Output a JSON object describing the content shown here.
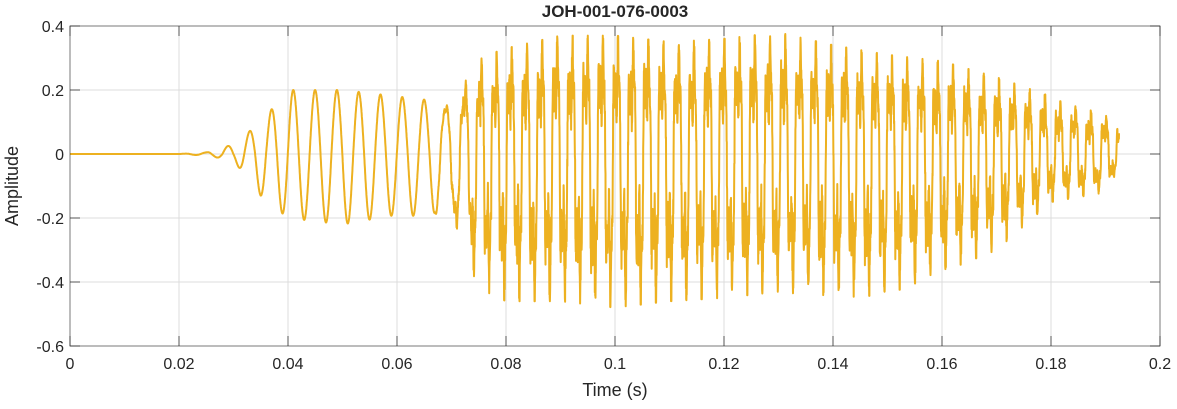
{
  "chart_data": {
    "type": "line",
    "title": "JOH-001-076-0003",
    "xlabel": "Time (s)",
    "ylabel": "Amplitude",
    "xlim": [
      0,
      0.2
    ],
    "ylim": [
      -0.6,
      0.4
    ],
    "xticks": [
      0,
      0.02,
      0.04,
      0.06,
      0.08,
      0.1,
      0.12,
      0.14,
      0.16,
      0.18,
      0.2
    ],
    "xtick_labels": [
      "0",
      "0.02",
      "0.04",
      "0.06",
      "0.08",
      "0.1",
      "0.12",
      "0.14",
      "0.16",
      "0.18",
      "0.2"
    ],
    "yticks": [
      -0.6,
      -0.4,
      -0.2,
      0,
      0.2,
      0.4
    ],
    "ytick_labels": [
      "-0.6",
      "-0.4",
      "-0.2",
      "0",
      "0.2",
      "0.4"
    ],
    "grid": true,
    "line_color": "#EDB120",
    "signal_end_s": 0.1925,
    "envelope": {
      "t": [
        0,
        0.02,
        0.025,
        0.03,
        0.035,
        0.04,
        0.05,
        0.06,
        0.07,
        0.075,
        0.08,
        0.09,
        0.1,
        0.11,
        0.12,
        0.13,
        0.14,
        0.15,
        0.16,
        0.17,
        0.18,
        0.19,
        0.1925
      ],
      "upper": [
        0,
        0,
        0.005,
        0.03,
        0.1,
        0.2,
        0.2,
        0.18,
        0.16,
        0.3,
        0.33,
        0.37,
        0.37,
        0.35,
        0.36,
        0.38,
        0.34,
        0.31,
        0.29,
        0.24,
        0.18,
        0.12,
        0.1
      ],
      "lower": [
        0,
        0,
        -0.005,
        -0.02,
        -0.13,
        -0.2,
        -0.22,
        -0.19,
        -0.2,
        -0.42,
        -0.46,
        -0.46,
        -0.48,
        -0.46,
        -0.45,
        -0.43,
        -0.45,
        -0.44,
        -0.37,
        -0.3,
        -0.15,
        -0.12,
        -0.05
      ]
    },
    "fundamental_hz": {
      "t": [
        0,
        0.068,
        0.075,
        0.2
      ],
      "f": [
        250,
        250,
        360,
        355
      ]
    }
  }
}
